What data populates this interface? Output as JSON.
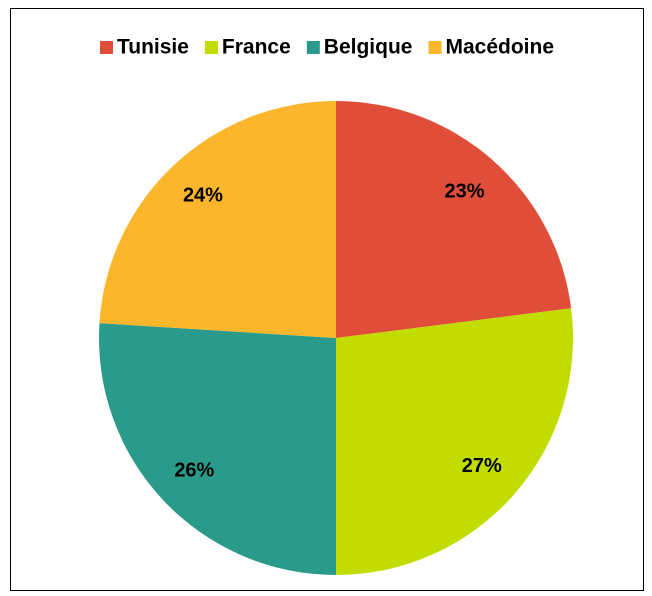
{
  "chart_data": {
    "type": "pie",
    "categories": [
      "Tunisie",
      "France",
      "Belgique",
      "Macédoine"
    ],
    "values": [
      23,
      27,
      26,
      24
    ],
    "value_labels": [
      "23%",
      "27%",
      "26%",
      "24%"
    ],
    "colors": [
      "#e04e39",
      "#c3dc00",
      "#2a9a8a",
      "#fbb62c"
    ],
    "legend": "top"
  }
}
